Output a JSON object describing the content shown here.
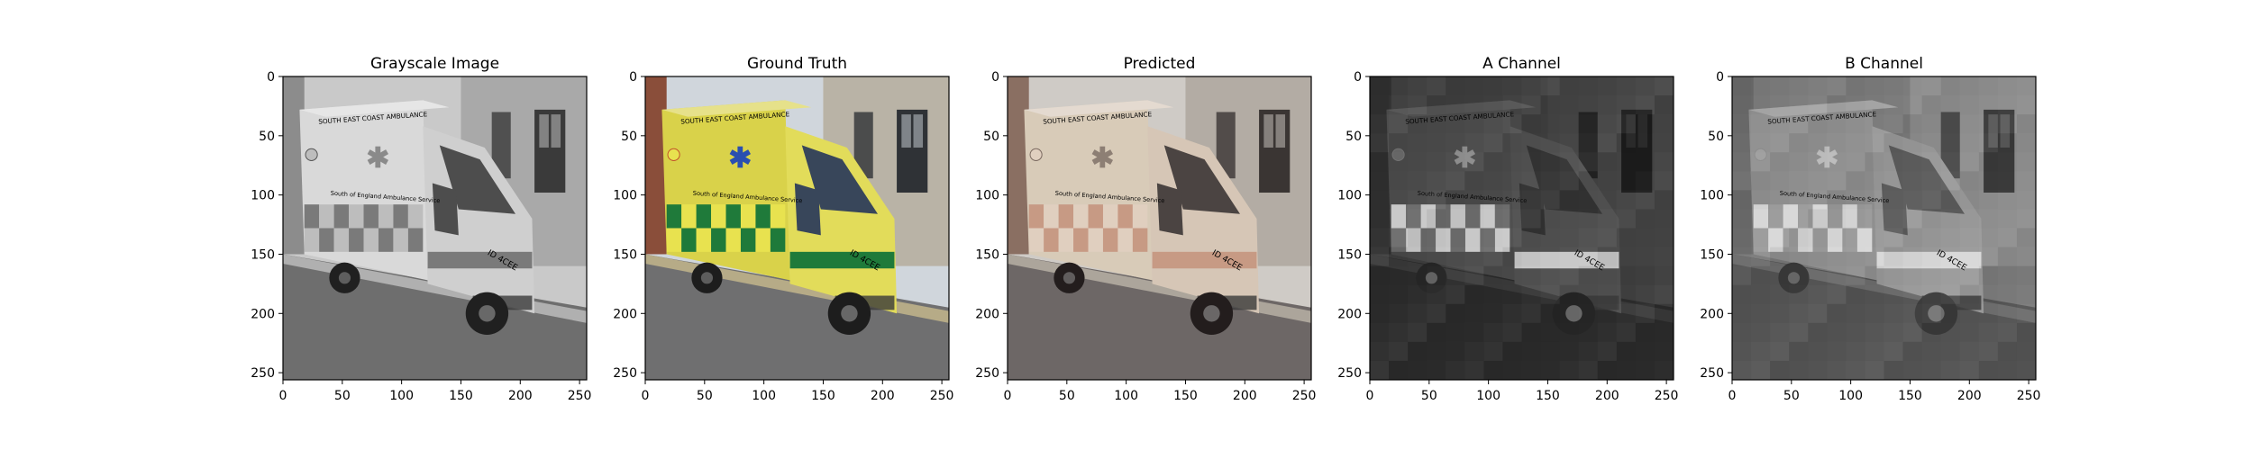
{
  "panels": [
    {
      "id": "grayscale",
      "title": "Grayscale Image",
      "mode": "gray"
    },
    {
      "id": "truth",
      "title": "Ground Truth",
      "mode": "truth"
    },
    {
      "id": "predicted",
      "title": "Predicted",
      "mode": "pred"
    },
    {
      "id": "a",
      "title": "A Channel",
      "mode": "achan"
    },
    {
      "id": "b",
      "title": "B Channel",
      "mode": "bchan"
    }
  ],
  "axes": {
    "x_ticks": [
      0,
      50,
      100,
      150,
      200,
      250
    ],
    "y_ticks": [
      0,
      50,
      100,
      150,
      200,
      250
    ],
    "range": [
      0,
      256
    ]
  },
  "vehicle": {
    "top_text": "SOUTH EAST COAST AMBULANCE",
    "side_text": "South of England Ambulance Service",
    "plate": "ID 4CEE"
  },
  "colors": {
    "truth_body": "#d9d24a",
    "truth_green": "#1f7a3a",
    "truth_star": "#2a4fb0",
    "pred_body": "#d8cbb8",
    "pred_patch": "#c79a84"
  }
}
